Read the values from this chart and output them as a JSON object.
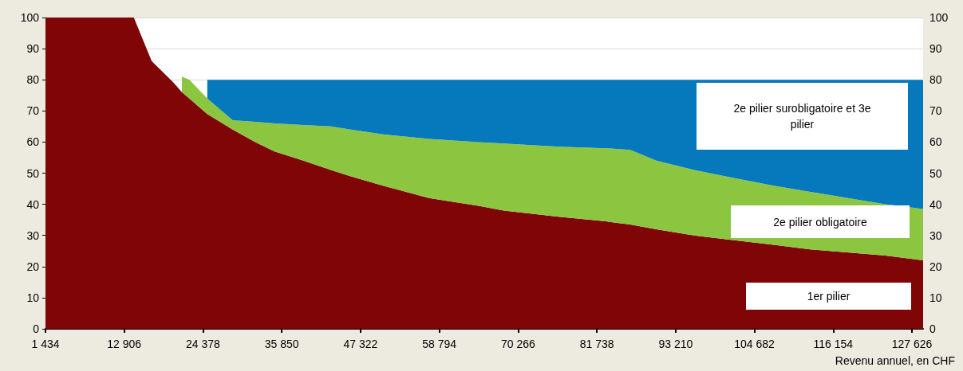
{
  "chart_data": {
    "type": "area",
    "stacked": true,
    "xlabel": "Revenu annuel, en CHF",
    "x": [
      1434,
      14300,
      16900,
      19200,
      20100,
      21300,
      22400,
      25000,
      28700,
      32000,
      34800,
      39000,
      43000,
      45900,
      50600,
      57300,
      64500,
      68200,
      76200,
      83100,
      86600,
      90400,
      95900,
      101500,
      107500,
      112800,
      123800,
      129250
    ],
    "series": [
      {
        "name": "1er pilier",
        "color": "#7f0506",
        "values": [
          100,
          100,
          86,
          81,
          79,
          76,
          74,
          69,
          64,
          60,
          57,
          54,
          51,
          49,
          46,
          42,
          39.5,
          38,
          36,
          34.5,
          33.5,
          32,
          30,
          28.5,
          27,
          25.5,
          23.5,
          22
        ]
      },
      {
        "name": "2e pilier obligatoire",
        "color": "#8cc641",
        "values": [
          null,
          null,
          null,
          null,
          null,
          5,
          6,
          5,
          3,
          6.5,
          9,
          11.5,
          14,
          15,
          16.5,
          19,
          20.5,
          21.5,
          22.5,
          23.5,
          24,
          22,
          21,
          20,
          19,
          18.5,
          16.5,
          16.5
        ]
      },
      {
        "name": "2e pilier surobligatoire et 3e pilier",
        "color": "#0679bd",
        "values": [
          null,
          null,
          null,
          null,
          null,
          null,
          null,
          6,
          13,
          13.5,
          14,
          14.5,
          15,
          16,
          17.5,
          19,
          20,
          20.5,
          21.5,
          22,
          22.5,
          26,
          29,
          31.5,
          34,
          36,
          40,
          41.5
        ]
      }
    ],
    "xlim": [
      1434,
      129250
    ],
    "xticks": [
      {
        "value": 1434,
        "label": "1 434"
      },
      {
        "value": 12906,
        "label": "12 906"
      },
      {
        "value": 24378,
        "label": "24 378"
      },
      {
        "value": 35850,
        "label": "35 850"
      },
      {
        "value": 47322,
        "label": "47 322"
      },
      {
        "value": 58794,
        "label": "58 794"
      },
      {
        "value": 70266,
        "label": "70 266"
      },
      {
        "value": 81738,
        "label": "81 738"
      },
      {
        "value": 93210,
        "label": "93 210"
      },
      {
        "value": 104682,
        "label": "104 682"
      },
      {
        "value": 116154,
        "label": "116 154"
      },
      {
        "value": 127626,
        "label": "127 626"
      }
    ],
    "ylim": [
      0,
      100
    ],
    "yticks": [
      0,
      10,
      20,
      30,
      40,
      50,
      60,
      70,
      80,
      90,
      100
    ],
    "y2lim": [
      0,
      100
    ],
    "y2ticks": [
      0,
      10,
      20,
      30,
      40,
      50,
      60,
      70,
      80,
      90,
      100
    ],
    "grid": "y",
    "legend": false
  }
}
